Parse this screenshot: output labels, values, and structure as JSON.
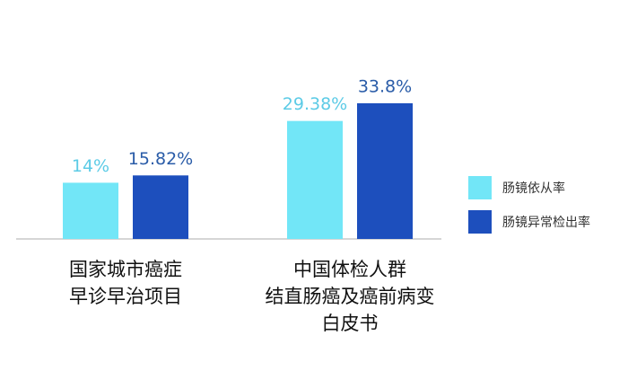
{
  "chart_data": {
    "type": "bar",
    "categories": [
      "国家城市癌症\n早诊早治项目",
      "中国体检人群\n结直肠癌及癌前病变\n白皮书"
    ],
    "series": [
      {
        "name": "肠镜依从率",
        "color": "#72e6f7",
        "label_color": "#5ccbe6",
        "values": [
          14,
          29.38
        ],
        "value_labels": [
          "14%",
          "29.38%"
        ]
      },
      {
        "name": "肠镜异常检出率",
        "color": "#1d4fbd",
        "label_color": "#2a5ca8",
        "values": [
          15.82,
          33.8
        ],
        "value_labels": [
          "15.82%",
          "33.8%"
        ]
      }
    ],
    "legend": "right"
  }
}
